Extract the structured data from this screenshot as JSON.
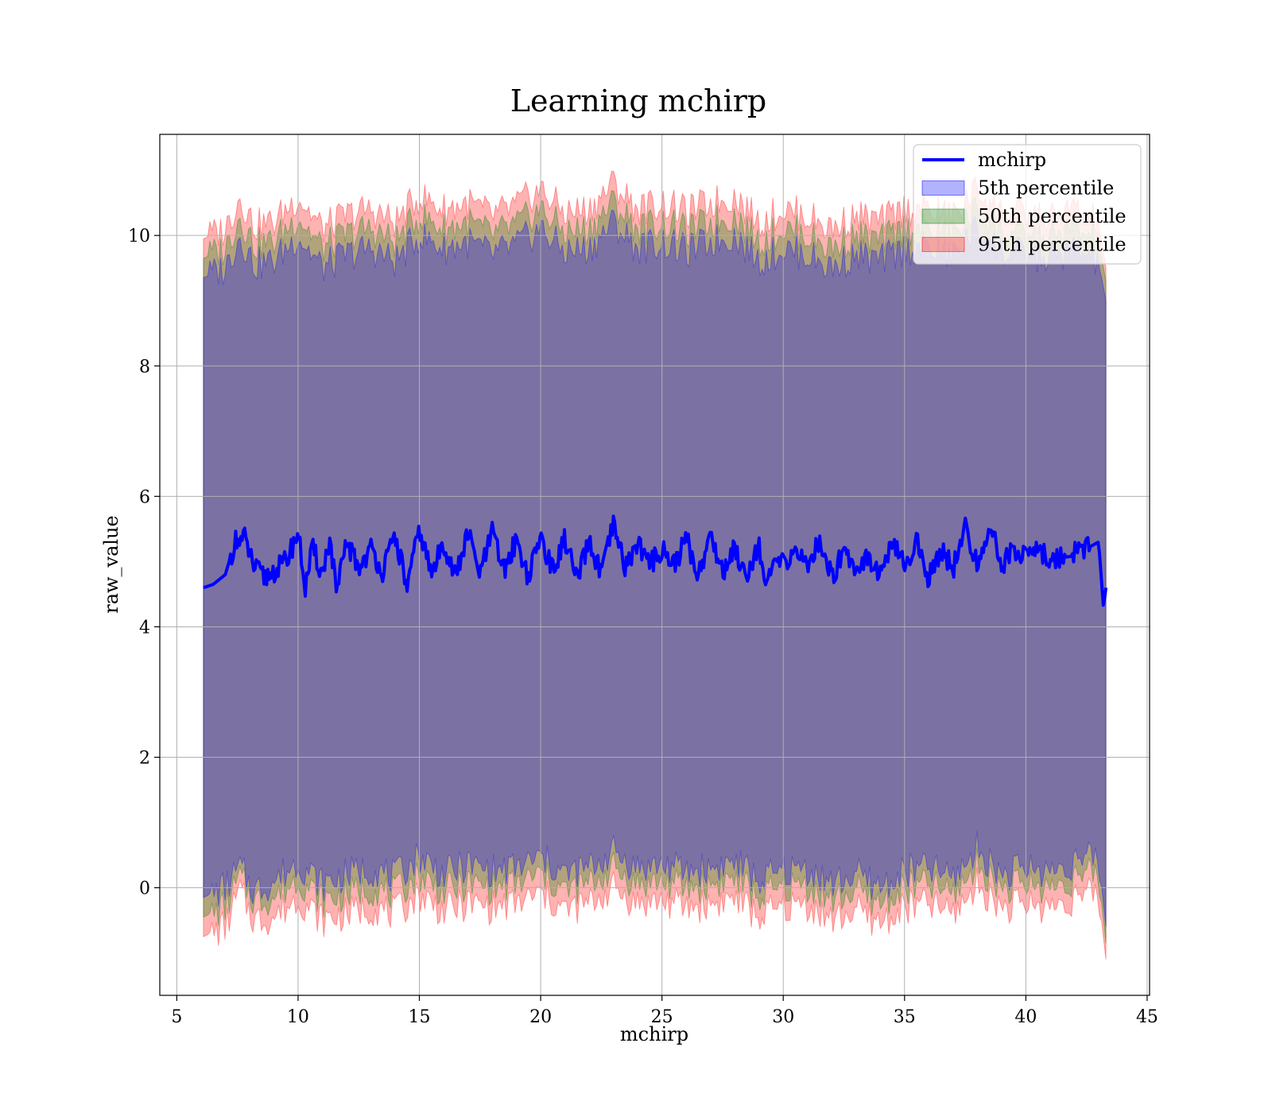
{
  "chart_data": {
    "type": "area",
    "title": "Learning mchirp",
    "xlabel": "mchirp",
    "ylabel": "raw_value",
    "xlim": [
      4.3,
      45.1
    ],
    "ylim": [
      -1.65,
      11.55
    ],
    "xticks": [
      5,
      10,
      15,
      20,
      25,
      30,
      35,
      40,
      45
    ],
    "yticks": [
      0,
      2,
      4,
      6,
      8,
      10
    ],
    "grid": true,
    "legend_position": "top-right",
    "x_range": [
      6.1,
      43.3
    ],
    "series": [
      {
        "name": "mchirp",
        "kind": "line",
        "color": "#0000ff",
        "x": [
          6.1,
          6.5,
          7.0,
          7.4,
          7.8,
          8.2,
          8.6,
          9.0,
          9.5,
          10.0,
          10.3,
          10.6,
          11.0,
          11.3,
          11.6,
          12.0,
          12.5,
          13.0,
          13.5,
          14.0,
          14.5,
          15.0,
          15.5,
          16.0,
          16.5,
          17.0,
          17.5,
          18.0,
          18.5,
          19.0,
          19.5,
          20.0,
          20.5,
          21.0,
          21.5,
          22.0,
          22.5,
          23.0,
          23.5,
          24.0,
          24.5,
          25.0,
          25.5,
          26.0,
          26.5,
          27.0,
          27.5,
          28.0,
          28.5,
          29.0,
          29.3,
          29.6,
          30.0,
          30.5,
          31.0,
          31.5,
          32.0,
          32.5,
          33.0,
          33.5,
          34.0,
          34.5,
          35.0,
          35.5,
          36.0,
          36.5,
          37.0,
          37.5,
          38.0,
          38.5,
          39.0,
          39.5,
          40.0,
          40.5,
          41.0,
          41.5,
          42.0,
          42.5,
          43.0,
          43.2,
          43.3
        ],
        "y": [
          4.6,
          4.65,
          4.8,
          5.3,
          5.35,
          4.9,
          4.75,
          4.85,
          5.0,
          5.45,
          4.6,
          5.2,
          4.8,
          5.35,
          4.5,
          5.3,
          4.9,
          5.2,
          4.85,
          5.4,
          4.6,
          5.5,
          4.8,
          5.3,
          4.75,
          5.45,
          4.8,
          5.45,
          4.85,
          5.35,
          4.75,
          5.4,
          4.85,
          5.35,
          4.7,
          5.3,
          4.8,
          5.55,
          4.9,
          5.3,
          4.95,
          5.2,
          4.95,
          5.35,
          4.8,
          5.4,
          4.85,
          5.2,
          4.8,
          5.3,
          4.5,
          5.0,
          4.95,
          5.2,
          4.9,
          5.35,
          4.75,
          5.2,
          4.9,
          5.1,
          4.8,
          5.25,
          4.95,
          5.3,
          4.75,
          5.2,
          4.9,
          5.5,
          4.95,
          5.55,
          4.95,
          5.2,
          5.1,
          5.2,
          5.0,
          5.1,
          5.15,
          5.2,
          5.3,
          4.3,
          4.6
        ]
      },
      {
        "name": "5th percentile",
        "kind": "band",
        "color": "#0000ff",
        "alpha": 0.3,
        "x": [
          6.1,
          7.0,
          7.6,
          8.2,
          9.0,
          10.0,
          11.0,
          12.0,
          13.0,
          14.0,
          15.0,
          16.0,
          17.0,
          18.0,
          19.0,
          20.0,
          21.0,
          22.0,
          23.0,
          24.0,
          25.0,
          26.0,
          27.0,
          28.0,
          29.0,
          30.0,
          31.0,
          32.0,
          33.0,
          34.0,
          35.0,
          36.0,
          37.0,
          38.0,
          39.0,
          40.0,
          41.0,
          42.0,
          43.0,
          43.3
        ],
        "lower": [
          -0.15,
          0.0,
          0.3,
          -0.05,
          0.1,
          0.4,
          0.05,
          0.2,
          0.3,
          0.15,
          0.5,
          0.2,
          0.35,
          0.25,
          0.3,
          0.45,
          0.2,
          0.3,
          0.55,
          0.3,
          0.35,
          0.25,
          0.3,
          0.4,
          0.1,
          0.25,
          0.3,
          0.05,
          0.2,
          0.0,
          0.25,
          0.3,
          0.15,
          0.6,
          0.2,
          0.3,
          0.25,
          0.4,
          0.45,
          -0.6
        ],
        "upper": [
          9.35,
          9.5,
          10.0,
          9.55,
          9.6,
          10.0,
          9.5,
          9.7,
          9.8,
          9.6,
          10.0,
          9.8,
          9.9,
          9.7,
          9.85,
          10.1,
          9.75,
          9.8,
          10.2,
          9.8,
          9.9,
          9.75,
          9.9,
          10.0,
          9.6,
          9.8,
          9.7,
          9.5,
          9.7,
          9.6,
          9.8,
          9.8,
          9.7,
          10.1,
          9.75,
          9.7,
          9.65,
          9.8,
          9.6,
          9.0
        ]
      },
      {
        "name": "50th percentile",
        "kind": "band",
        "color": "#008000",
        "alpha": 0.3,
        "x": [
          6.1,
          7.0,
          7.6,
          8.2,
          9.0,
          10.0,
          11.0,
          12.0,
          13.0,
          14.0,
          15.0,
          16.0,
          17.0,
          18.0,
          19.0,
          20.0,
          21.0,
          22.0,
          23.0,
          24.0,
          25.0,
          26.0,
          27.0,
          28.0,
          29.0,
          30.0,
          31.0,
          32.0,
          33.0,
          34.0,
          35.0,
          36.0,
          37.0,
          38.0,
          39.0,
          40.0,
          41.0,
          42.0,
          43.0,
          43.3
        ],
        "lower": [
          -0.45,
          -0.3,
          0.15,
          -0.2,
          -0.15,
          0.15,
          -0.2,
          -0.1,
          0.0,
          -0.1,
          0.2,
          -0.05,
          0.05,
          0.0,
          0.05,
          0.2,
          -0.05,
          0.05,
          0.3,
          0.05,
          0.1,
          0.0,
          0.05,
          0.15,
          -0.15,
          0.0,
          0.05,
          -0.2,
          -0.05,
          -0.25,
          0.0,
          0.05,
          -0.1,
          0.35,
          0.0,
          0.05,
          0.0,
          0.15,
          0.2,
          -0.85
        ],
        "upper": [
          9.65,
          9.8,
          10.3,
          9.85,
          9.9,
          10.3,
          9.8,
          10.0,
          10.1,
          9.9,
          10.3,
          10.1,
          10.2,
          10.0,
          10.15,
          10.4,
          10.05,
          10.1,
          10.5,
          10.1,
          10.2,
          10.05,
          10.2,
          10.3,
          9.9,
          10.1,
          10.0,
          9.8,
          10.0,
          9.9,
          10.1,
          10.1,
          10.0,
          10.4,
          10.05,
          10.0,
          9.95,
          10.1,
          9.9,
          9.3
        ]
      },
      {
        "name": "95th percentile",
        "kind": "band",
        "color": "#ff0000",
        "alpha": 0.3,
        "x": [
          6.1,
          7.0,
          7.6,
          8.2,
          9.0,
          10.0,
          11.0,
          12.0,
          13.0,
          14.0,
          15.0,
          16.0,
          17.0,
          18.0,
          19.0,
          20.0,
          21.0,
          22.0,
          23.0,
          24.0,
          25.0,
          26.0,
          27.0,
          28.0,
          29.0,
          30.0,
          31.0,
          32.0,
          33.0,
          34.0,
          35.0,
          36.0,
          37.0,
          38.0,
          39.0,
          40.0,
          41.0,
          42.0,
          43.0,
          43.3
        ],
        "lower": [
          -0.75,
          -0.6,
          -0.05,
          -0.5,
          -0.45,
          -0.15,
          -0.5,
          -0.4,
          -0.3,
          -0.4,
          -0.1,
          -0.35,
          -0.25,
          -0.3,
          -0.25,
          -0.1,
          -0.35,
          -0.25,
          0.0,
          -0.25,
          -0.2,
          -0.3,
          -0.25,
          -0.15,
          -0.45,
          -0.3,
          -0.25,
          -0.5,
          -0.35,
          -0.55,
          -0.3,
          -0.25,
          -0.4,
          0.05,
          -0.3,
          -0.25,
          -0.3,
          -0.15,
          -0.1,
          -1.1
        ],
        "upper": [
          9.95,
          10.1,
          10.6,
          10.15,
          10.2,
          10.6,
          10.1,
          10.3,
          10.4,
          10.2,
          10.6,
          10.4,
          10.5,
          10.3,
          10.45,
          10.7,
          10.35,
          10.4,
          10.8,
          10.4,
          10.5,
          10.35,
          10.5,
          10.6,
          10.2,
          10.4,
          10.3,
          10.1,
          10.3,
          10.2,
          10.4,
          10.4,
          10.3,
          10.7,
          10.35,
          10.3,
          10.25,
          10.4,
          10.2,
          9.5
        ]
      }
    ]
  }
}
